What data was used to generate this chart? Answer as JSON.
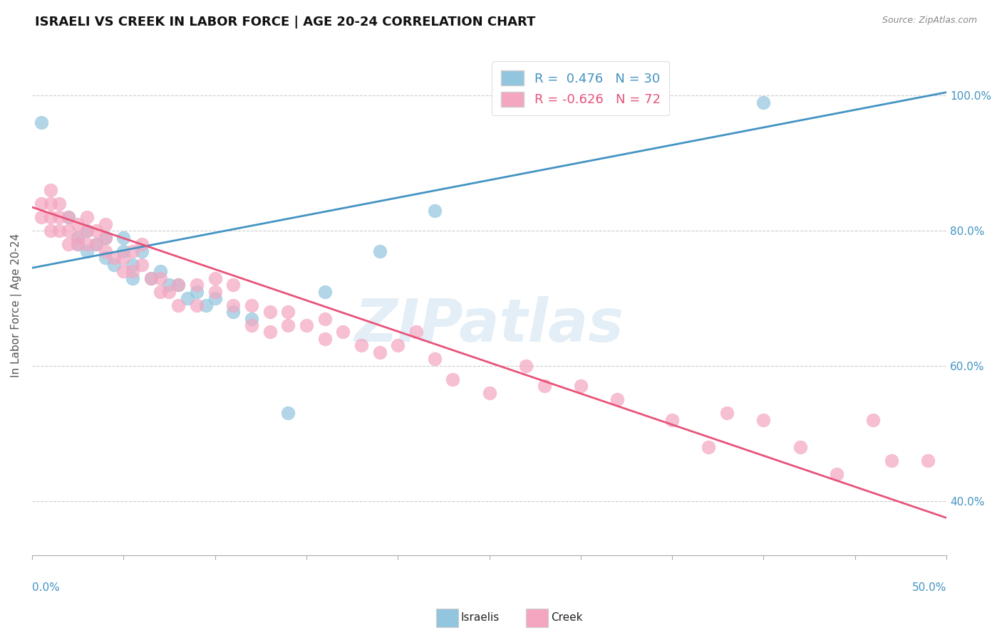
{
  "title": "ISRAELI VS CREEK IN LABOR FORCE | AGE 20-24 CORRELATION CHART",
  "source": "Source: ZipAtlas.com",
  "ylabel": "In Labor Force | Age 20-24",
  "ylabel_right_ticks": [
    "40.0%",
    "60.0%",
    "80.0%",
    "100.0%"
  ],
  "ylabel_right_vals": [
    0.4,
    0.6,
    0.8,
    1.0
  ],
  "xlim": [
    0.0,
    0.5
  ],
  "ylim": [
    0.32,
    1.06
  ],
  "legend_r_israeli": "0.476",
  "legend_n_israeli": "30",
  "legend_r_creek": "-0.626",
  "legend_n_creek": "72",
  "israeli_color": "#92c5de",
  "creek_color": "#f4a6c0",
  "israeli_line_color": "#4393c3",
  "creek_line_color": "#e8537a",
  "watermark": "ZIPatlas",
  "israeli_line_x0": 0.0,
  "israeli_line_y0": 0.745,
  "israeli_line_x1": 0.5,
  "israeli_line_y1": 1.005,
  "creek_line_x0": 0.0,
  "creek_line_y0": 0.835,
  "creek_line_x1": 0.5,
  "creek_line_y1": 0.375,
  "israeli_points_x": [
    0.005,
    0.02,
    0.025,
    0.025,
    0.03,
    0.03,
    0.035,
    0.04,
    0.04,
    0.045,
    0.05,
    0.05,
    0.055,
    0.055,
    0.06,
    0.065,
    0.07,
    0.075,
    0.08,
    0.085,
    0.09,
    0.095,
    0.1,
    0.11,
    0.12,
    0.14,
    0.16,
    0.19,
    0.22,
    0.4
  ],
  "israeli_points_y": [
    0.96,
    0.82,
    0.79,
    0.78,
    0.8,
    0.77,
    0.78,
    0.79,
    0.76,
    0.75,
    0.79,
    0.77,
    0.73,
    0.75,
    0.77,
    0.73,
    0.74,
    0.72,
    0.72,
    0.7,
    0.71,
    0.69,
    0.7,
    0.68,
    0.67,
    0.53,
    0.71,
    0.77,
    0.83,
    0.99
  ],
  "creek_points_x": [
    0.005,
    0.005,
    0.01,
    0.01,
    0.01,
    0.01,
    0.015,
    0.015,
    0.015,
    0.02,
    0.02,
    0.02,
    0.025,
    0.025,
    0.025,
    0.03,
    0.03,
    0.03,
    0.035,
    0.035,
    0.04,
    0.04,
    0.04,
    0.045,
    0.05,
    0.05,
    0.055,
    0.055,
    0.06,
    0.06,
    0.065,
    0.07,
    0.07,
    0.075,
    0.08,
    0.08,
    0.09,
    0.09,
    0.1,
    0.1,
    0.11,
    0.11,
    0.12,
    0.12,
    0.13,
    0.13,
    0.14,
    0.14,
    0.15,
    0.16,
    0.16,
    0.17,
    0.18,
    0.19,
    0.2,
    0.21,
    0.22,
    0.23,
    0.25,
    0.27,
    0.28,
    0.3,
    0.32,
    0.35,
    0.37,
    0.38,
    0.4,
    0.42,
    0.44,
    0.46,
    0.47,
    0.49
  ],
  "creek_points_y": [
    0.82,
    0.84,
    0.82,
    0.84,
    0.8,
    0.86,
    0.82,
    0.8,
    0.84,
    0.82,
    0.8,
    0.78,
    0.81,
    0.79,
    0.78,
    0.82,
    0.8,
    0.78,
    0.8,
    0.78,
    0.79,
    0.77,
    0.81,
    0.76,
    0.76,
    0.74,
    0.74,
    0.77,
    0.75,
    0.78,
    0.73,
    0.73,
    0.71,
    0.71,
    0.72,
    0.69,
    0.69,
    0.72,
    0.71,
    0.73,
    0.69,
    0.72,
    0.69,
    0.66,
    0.65,
    0.68,
    0.66,
    0.68,
    0.66,
    0.64,
    0.67,
    0.65,
    0.63,
    0.62,
    0.63,
    0.65,
    0.61,
    0.58,
    0.56,
    0.6,
    0.57,
    0.57,
    0.55,
    0.52,
    0.48,
    0.53,
    0.52,
    0.48,
    0.44,
    0.52,
    0.46,
    0.46
  ]
}
